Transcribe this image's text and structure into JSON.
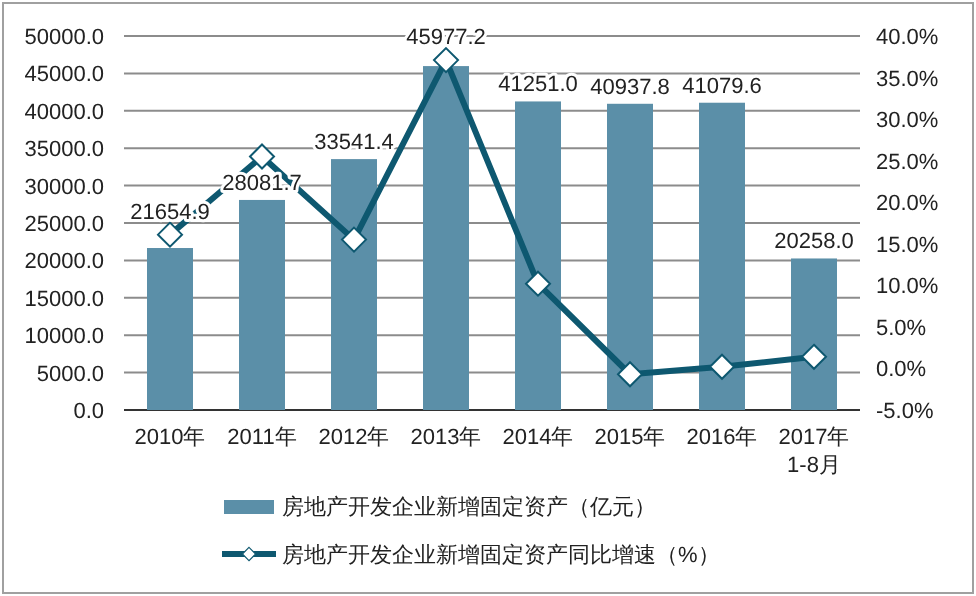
{
  "chart_data": {
    "type": "bar",
    "categories": [
      "2010年",
      "2011年",
      "2012年",
      "2013年",
      "2014年",
      "2015年",
      "2016年",
      "2017年 1-8月"
    ],
    "series": [
      {
        "name": "房地产开发企业新增固定资产（亿元）",
        "color": "#5b8fa8",
        "values": [
          21654.9,
          28081.7,
          33541.4,
          45977.2,
          41251.0,
          40937.8,
          41079.6,
          20258.0
        ],
        "value_labels": [
          "21654.9",
          "28081.7",
          "33541.4",
          "45977.2",
          "41251.0",
          "40937.8",
          "41079.6",
          "20258.0"
        ]
      },
      {
        "name": "房地产开发企业新增固定资产同比增速（%）",
        "type": "line",
        "axis": "y2",
        "color": "#0e5870",
        "marker": "diamond",
        "values": [
          16.1,
          25.5,
          15.5,
          37.1,
          10.2,
          -0.7,
          0.2,
          1.4
        ]
      }
    ],
    "ylim": [
      0,
      50000
    ],
    "yticks": [
      {
        "value": 0,
        "label": "0.0"
      },
      {
        "value": 5000,
        "label": "5000.0"
      },
      {
        "value": 10000,
        "label": "10000.0"
      },
      {
        "value": 15000,
        "label": "15000.0"
      },
      {
        "value": 20000,
        "label": "20000.0"
      },
      {
        "value": 25000,
        "label": "25000.0"
      },
      {
        "value": 30000,
        "label": "30000.0"
      },
      {
        "value": 35000,
        "label": "35000.0"
      },
      {
        "value": 40000,
        "label": "40000.0"
      },
      {
        "value": 45000,
        "label": "45000.0"
      },
      {
        "value": 50000,
        "label": "50000.0"
      }
    ],
    "y2lim": [
      -5,
      40
    ],
    "y2ticks": [
      {
        "value": -5,
        "label": "-5.0%"
      },
      {
        "value": 0,
        "label": "0.0%"
      },
      {
        "value": 5,
        "label": "5.0%"
      },
      {
        "value": 10,
        "label": "10.0%"
      },
      {
        "value": 15,
        "label": "15.0%"
      },
      {
        "value": 20,
        "label": "20.0%"
      },
      {
        "value": 25,
        "label": "25.0%"
      },
      {
        "value": 30,
        "label": "30.0%"
      },
      {
        "value": 35,
        "label": "35.0%"
      },
      {
        "value": 40,
        "label": "40.0%"
      }
    ],
    "grid": "y",
    "legend": "bottom"
  }
}
